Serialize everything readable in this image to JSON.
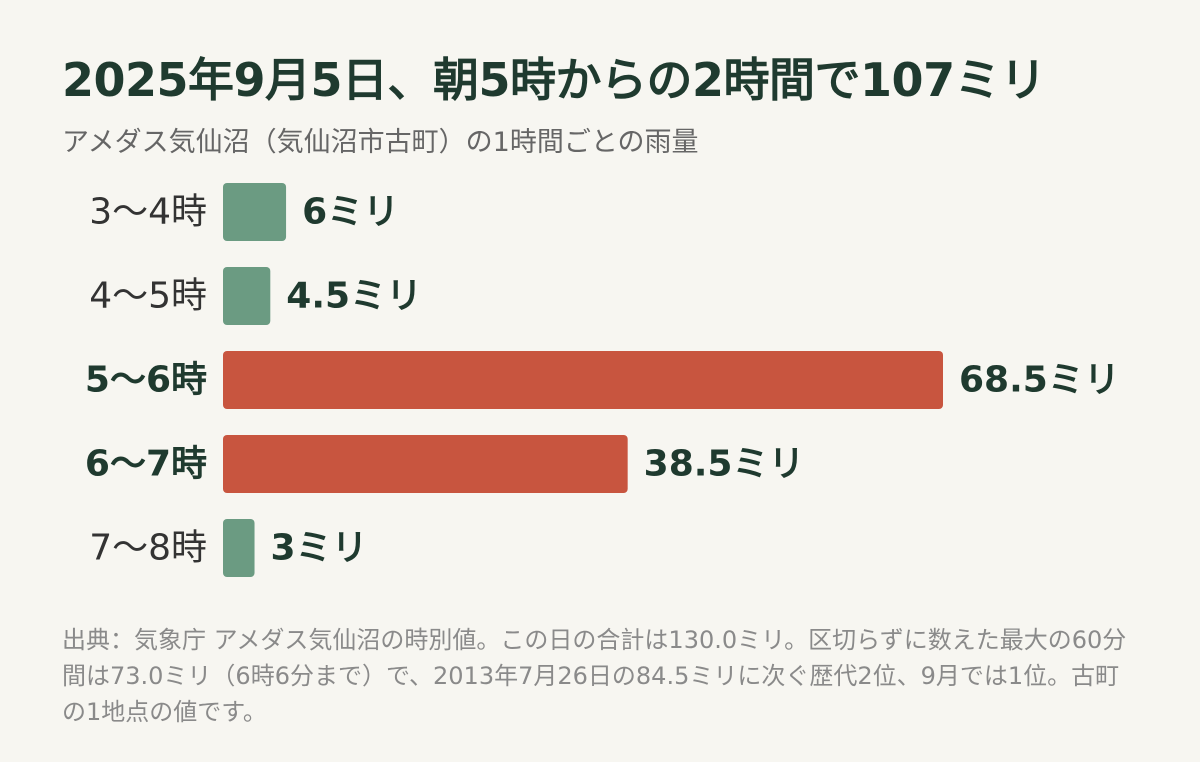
{
  "title": "2025年9月5日、朝5時からの2時間で107ミリ",
  "subtitle": "アメダス気仙沼（気仙沼市古町）の1時間ごとの雨量",
  "footnote": "出典：気象庁 アメダス気仙沼の時別値。この日の合計は130.0ミリ。区切らずに数えた最大の60分間は73.0ミリ（6時6分まで）で、2013年7月26日の84.5ミリに次ぐ歴代2位、9月では1位。古町の1地点の値です。",
  "colors": {
    "normal": "#6b9b82",
    "highlight": "#c8553f",
    "text": "#1f3a2f",
    "muted_label": "#333333"
  },
  "chart_data": {
    "type": "bar",
    "orientation": "horizontal",
    "categories": [
      "3〜4時",
      "4〜5時",
      "5〜6時",
      "6〜7時",
      "7〜8時"
    ],
    "values": [
      6,
      4.5,
      68.5,
      38.5,
      3
    ],
    "value_labels": [
      "6ミリ",
      "4.5ミリ",
      "68.5ミリ",
      "38.5ミリ",
      "3ミリ"
    ],
    "highlighted": [
      false,
      false,
      true,
      true,
      false
    ],
    "unit": "ミリ",
    "xlim": [
      0,
      68.5
    ],
    "grid": false,
    "legend": "none"
  }
}
